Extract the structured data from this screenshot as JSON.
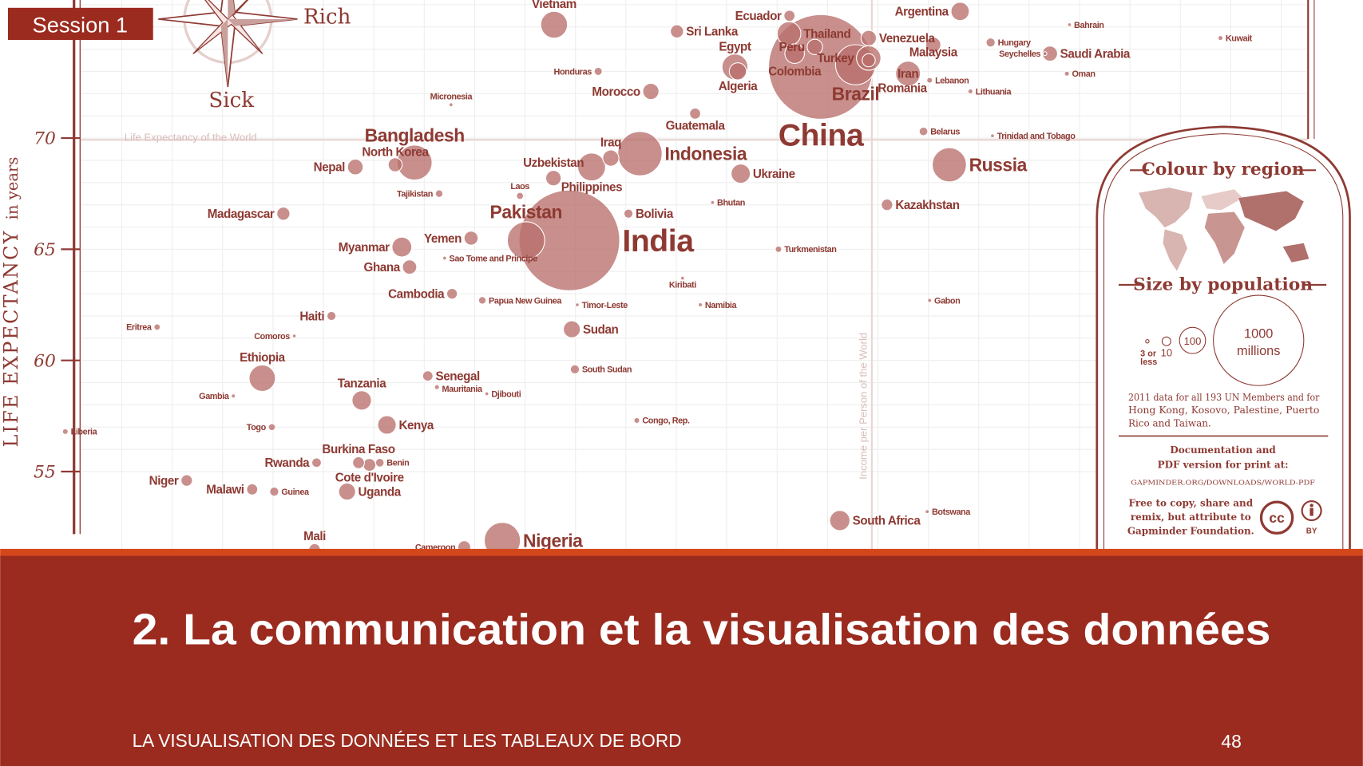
{
  "slide": {
    "session_badge": "Session 1",
    "title": "2. La communication et la visualisation des données",
    "footer": "LA VISUALISATION DES DONNÉES ET LES TABLEAUX DE BORD",
    "page_number": "48"
  },
  "colors": {
    "band": "#9b2b1f",
    "accent_strip": "#d4471a",
    "bubble": "#b8706b",
    "ink": "#8e3a33"
  },
  "chart_data": {
    "type": "scatter",
    "title": "Life Expectancy of the World",
    "ylabel_main": "LIFE EXPECTANCY",
    "ylabel_unit": "in years",
    "y_ticks": [
      70,
      65,
      60,
      55
    ],
    "x_scale": "log",
    "xlabel": "Income per Person of the World",
    "reference_lines": {
      "horizontal_label": "Life Expectancy of the World",
      "vertical_label": "Income per Person of the World"
    },
    "compass": {
      "east": "Rich",
      "south": "Sick"
    },
    "legend": {
      "colour_title": "Colour by region",
      "size_title": "Size by population",
      "size_labels": [
        "3 or",
        "less",
        "10",
        "100",
        "1000",
        "millions"
      ],
      "note_lines": [
        "2011 data for all 193 UN Members and for",
        "Hong Kong, Kosovo, Palestine, Puerto",
        "Rico and Taiwan."
      ],
      "doc_lines": [
        "Documentation and",
        "PDF version for print at:"
      ],
      "url": "GAPMINDER.ORG/DOWNLOADS/WORLD-PDF",
      "license_lines": [
        "Free to copy, share and",
        "remix, but attribute to",
        "Gapminder Foundation."
      ],
      "cc": "cc",
      "by": "BY"
    },
    "series": [
      {
        "name": "China",
        "income": 11200,
        "life": 73.2,
        "pop": 1340,
        "label": "below",
        "size": "xl"
      },
      {
        "name": "India",
        "income": 3600,
        "life": 65.4,
        "pop": 1240,
        "label": "right",
        "size": "xl"
      },
      {
        "name": "Indonesia",
        "income": 4950,
        "life": 69.3,
        "pop": 240,
        "label": "right",
        "size": "l"
      },
      {
        "name": "Brazil",
        "income": 13100,
        "life": 73.3,
        "pop": 197,
        "label": "below",
        "size": "l"
      },
      {
        "name": "Pakistan",
        "income": 2960,
        "life": 65.4,
        "pop": 170,
        "label": "above",
        "size": "l"
      },
      {
        "name": "Nigeria",
        "income": 2660,
        "life": 51.9,
        "pop": 160,
        "label": "right",
        "size": "l"
      },
      {
        "name": "Bangladesh",
        "income": 1790,
        "life": 68.9,
        "pop": 150,
        "label": "above",
        "size": "l"
      },
      {
        "name": "Russia",
        "income": 20000,
        "life": 68.8,
        "pop": 143,
        "label": "right",
        "size": "l"
      },
      {
        "name": "Philippines",
        "income": 3980,
        "life": 68.7,
        "pop": 95,
        "label": "below",
        "size": "m"
      },
      {
        "name": "Vietnam",
        "income": 3360,
        "life": 75.1,
        "pop": 88,
        "label": "above",
        "size": "m"
      },
      {
        "name": "Ethiopia",
        "income": 900,
        "life": 59.2,
        "pop": 85,
        "label": "above",
        "size": "m"
      },
      {
        "name": "Egypt",
        "income": 7600,
        "life": 73.2,
        "pop": 82,
        "label": "above",
        "size": "m"
      },
      {
        "name": "Iran",
        "income": 16600,
        "life": 72.9,
        "pop": 75,
        "label": "center",
        "size": "m"
      },
      {
        "name": "Turkey",
        "income": 13900,
        "life": 73.6,
        "pop": 73,
        "label": "left",
        "size": "m"
      },
      {
        "name": "Thailand",
        "income": 9700,
        "life": 74.7,
        "pop": 69,
        "label": "above",
        "size": "m"
      },
      {
        "name": "South Africa",
        "income": 12200,
        "life": 52.8,
        "pop": 50,
        "label": "right",
        "size": "m"
      },
      {
        "name": "Myanmar",
        "income": 1690,
        "life": 65.1,
        "pop": 48,
        "label": "left",
        "size": "m"
      },
      {
        "name": "Colombia",
        "income": 9950,
        "life": 73.8,
        "pop": 47,
        "label": "below",
        "size": "m"
      },
      {
        "name": "Tanzania",
        "income": 1410,
        "life": 58.2,
        "pop": 46,
        "label": "above",
        "size": "m"
      },
      {
        "name": "Ukraine",
        "income": 7800,
        "life": 68.4,
        "pop": 45,
        "label": "right",
        "size": "m"
      },
      {
        "name": "Kenya",
        "income": 1580,
        "life": 57.1,
        "pop": 42,
        "label": "right",
        "size": "m"
      },
      {
        "name": "Argentina",
        "income": 21000,
        "life": 75.7,
        "pop": 41,
        "label": "left",
        "size": "m"
      },
      {
        "name": "Algeria",
        "income": 7700,
        "life": 73.0,
        "pop": 36,
        "label": "below",
        "size": "m"
      },
      {
        "name": "Sudan",
        "income": 3640,
        "life": 61.4,
        "pop": 35,
        "label": "right",
        "size": "m"
      },
      {
        "name": "Uganda",
        "income": 1320,
        "life": 54.1,
        "pop": 35,
        "label": "right",
        "size": "m"
      },
      {
        "name": "Morocco",
        "income": 5200,
        "life": 72.1,
        "pop": 32,
        "label": "left",
        "size": "m"
      },
      {
        "name": "Iraq",
        "income": 4340,
        "life": 69.1,
        "pop": 32,
        "label": "above",
        "size": "m"
      },
      {
        "name": "Nepal",
        "income": 1370,
        "life": 68.7,
        "pop": 30,
        "label": "left",
        "size": "m"
      },
      {
        "name": "Uzbekistan",
        "income": 3350,
        "life": 68.2,
        "pop": 29,
        "label": "above",
        "size": "m"
      },
      {
        "name": "Peru",
        "income": 10900,
        "life": 74.1,
        "pop": 29,
        "label": "above",
        "size": "m"
      },
      {
        "name": "Venezuela",
        "income": 13900,
        "life": 74.5,
        "pop": 29,
        "label": "right",
        "size": "m"
      },
      {
        "name": "Malaysia",
        "income": 18600,
        "life": 74.2,
        "pop": 28,
        "label": "right",
        "size": "m"
      },
      {
        "name": "Saudi Arabia",
        "income": 31500,
        "life": 73.8,
        "pop": 28,
        "label": "below",
        "size": "m"
      },
      {
        "name": "Ghana",
        "income": 1750,
        "life": 64.2,
        "pop": 25,
        "label": "left",
        "size": "m"
      },
      {
        "name": "North Korea",
        "income": 1640,
        "life": 68.8,
        "pop": 24,
        "label": "above",
        "size": "m"
      },
      {
        "name": "Yemen",
        "income": 2310,
        "life": 65.5,
        "pop": 24,
        "label": "left",
        "size": "m"
      },
      {
        "name": "Madagascar",
        "income": 990,
        "life": 66.6,
        "pop": 21,
        "label": "left",
        "size": "m"
      },
      {
        "name": "Sri Lanka",
        "income": 5850,
        "life": 74.8,
        "pop": 21,
        "label": "right",
        "size": "m"
      },
      {
        "name": "Romania",
        "income": 13900,
        "life": 73.5,
        "pop": 21,
        "label": "right",
        "size": "m"
      },
      {
        "name": "Cameroon",
        "income": 2240,
        "life": 51.6,
        "pop": 20,
        "label": "left",
        "size": "s"
      },
      {
        "name": "Cote d'Ivoire",
        "income": 1460,
        "life": 55.3,
        "pop": 20,
        "label": "right",
        "size": "m"
      },
      {
        "name": "Burkina Faso",
        "income": 1390,
        "life": 55.4,
        "pop": 17,
        "label": "left",
        "size": "m"
      },
      {
        "name": "Kazakhstan",
        "income": 15100,
        "life": 67.0,
        "pop": 16,
        "label": "right",
        "size": "m"
      },
      {
        "name": "Mali",
        "income": 1140,
        "life": 51.5,
        "pop": 16,
        "label": "above",
        "size": "m"
      },
      {
        "name": "Niger",
        "income": 640,
        "life": 54.6,
        "pop": 16,
        "label": "left",
        "size": "m"
      },
      {
        "name": "Guatemala",
        "income": 6350,
        "life": 71.1,
        "pop": 15,
        "label": "below",
        "size": "m"
      },
      {
        "name": "Ecuador",
        "income": 9720,
        "life": 75.5,
        "pop": 15,
        "label": "left",
        "size": "m"
      },
      {
        "name": "Malawi",
        "income": 860,
        "life": 54.2,
        "pop": 15,
        "label": "left",
        "size": "m"
      },
      {
        "name": "Cambodia",
        "income": 2120,
        "life": 63.0,
        "pop": 14,
        "label": "left",
        "size": "m"
      },
      {
        "name": "Senegal",
        "income": 1900,
        "life": 59.3,
        "pop": 13,
        "label": "right",
        "size": "m"
      },
      {
        "name": "Rwanda",
        "income": 1150,
        "life": 55.4,
        "pop": 11,
        "label": "left",
        "size": "m"
      },
      {
        "name": "Haiti",
        "income": 1230,
        "life": 62.0,
        "pop": 10,
        "label": "left",
        "size": "m"
      },
      {
        "name": "Bolivia",
        "income": 4700,
        "life": 66.6,
        "pop": 10,
        "label": "right",
        "size": "m"
      },
      {
        "name": "Guinea",
        "income": 950,
        "life": 54.1,
        "pop": 10,
        "label": "right",
        "size": "s"
      },
      {
        "name": "South Sudan",
        "income": 3690,
        "life": 59.6,
        "pop": 10,
        "label": "right",
        "size": "s"
      },
      {
        "name": "Belarus",
        "income": 17800,
        "life": 70.3,
        "pop": 9,
        "label": "right",
        "size": "s"
      },
      {
        "name": "Benin",
        "income": 1530,
        "life": 55.4,
        "pop": 9,
        "label": "right",
        "size": "s"
      },
      {
        "name": "Honduras",
        "income": 4100,
        "life": 73.0,
        "pop": 8,
        "label": "left",
        "size": "s"
      },
      {
        "name": "Papua New Guinea",
        "income": 2430,
        "life": 62.7,
        "pop": 7,
        "label": "right",
        "size": "s"
      },
      {
        "name": "Tajikistan",
        "income": 2000,
        "life": 67.5,
        "pop": 7,
        "label": "left",
        "size": "s"
      },
      {
        "name": "Laos",
        "income": 2880,
        "life": 67.4,
        "pop": 6,
        "label": "above",
        "size": "s"
      },
      {
        "name": "Togo",
        "income": 940,
        "life": 57.0,
        "pop": 6,
        "label": "left",
        "size": "s"
      },
      {
        "name": "Eritrea",
        "income": 560,
        "life": 61.5,
        "pop": 5,
        "label": "left",
        "size": "s"
      },
      {
        "name": "Turkmenistan",
        "income": 9250,
        "life": 65.0,
        "pop": 5,
        "label": "right",
        "size": "s"
      },
      {
        "name": "Liberia",
        "income": 370,
        "life": 56.8,
        "pop": 4,
        "label": "right",
        "size": "s"
      },
      {
        "name": "Congo, Rep.",
        "income": 4880,
        "life": 57.3,
        "pop": 4,
        "label": "right",
        "size": "s"
      },
      {
        "name": "Lebanon",
        "income": 18300,
        "life": 72.6,
        "pop": 4,
        "label": "right",
        "size": "s"
      },
      {
        "name": "Mauritania",
        "income": 1980,
        "life": 58.8,
        "pop": 3,
        "label": "right",
        "size": "s"
      },
      {
        "name": "Kuwait",
        "income": 68000,
        "life": 74.5,
        "pop": 3,
        "label": "right",
        "size": "s"
      },
      {
        "name": "Lithuania",
        "income": 22000,
        "life": 72.1,
        "pop": 3,
        "label": "right",
        "size": "s"
      },
      {
        "name": "Oman",
        "income": 34000,
        "life": 72.9,
        "pop": 3,
        "label": "right",
        "size": "s"
      },
      {
        "name": "Gambia",
        "income": 790,
        "life": 58.4,
        "pop": 2,
        "label": "left",
        "size": "s"
      },
      {
        "name": "Gabon",
        "income": 18300,
        "life": 62.7,
        "pop": 2,
        "label": "right",
        "size": "s"
      },
      {
        "name": "Botswana",
        "income": 18100,
        "life": 53.2,
        "pop": 2,
        "label": "right",
        "size": "s"
      },
      {
        "name": "Namibia",
        "income": 6500,
        "life": 62.5,
        "pop": 2,
        "label": "right",
        "size": "s"
      },
      {
        "name": "Hungary",
        "income": 24100,
        "life": 74.3,
        "pop": 10,
        "label": "right",
        "size": "s"
      },
      {
        "name": "Bahrain",
        "income": 34400,
        "life": 75.1,
        "pop": 1,
        "label": "right",
        "size": "s"
      },
      {
        "name": "Seychelles",
        "income": 30800,
        "life": 73.8,
        "pop": 0.1,
        "label": "right",
        "size": "s"
      },
      {
        "name": "Trinidad and Tobago",
        "income": 24300,
        "life": 70.1,
        "pop": 1,
        "label": "right",
        "size": "s"
      },
      {
        "name": "Bhutan",
        "income": 6870,
        "life": 67.1,
        "pop": 1,
        "label": "right",
        "size": "s"
      },
      {
        "name": "Micronesia",
        "income": 2110,
        "life": 71.5,
        "pop": 0.1,
        "label": "above",
        "size": "s"
      },
      {
        "name": "Timor-Leste",
        "income": 3730,
        "life": 62.5,
        "pop": 1,
        "label": "right",
        "size": "s"
      },
      {
        "name": "Kiribati",
        "income": 6000,
        "life": 63.7,
        "pop": 0.1,
        "label": "below",
        "size": "s"
      },
      {
        "name": "Sao Tome and Principe",
        "income": 2050,
        "life": 64.6,
        "pop": 0.2,
        "label": "right",
        "size": "s"
      },
      {
        "name": "Djibouti",
        "income": 2480,
        "life": 58.5,
        "pop": 1,
        "label": "right",
        "size": "s"
      },
      {
        "name": "Comoros",
        "income": 1040,
        "life": 61.1,
        "pop": 0.7,
        "label": "left",
        "size": "s"
      }
    ]
  }
}
